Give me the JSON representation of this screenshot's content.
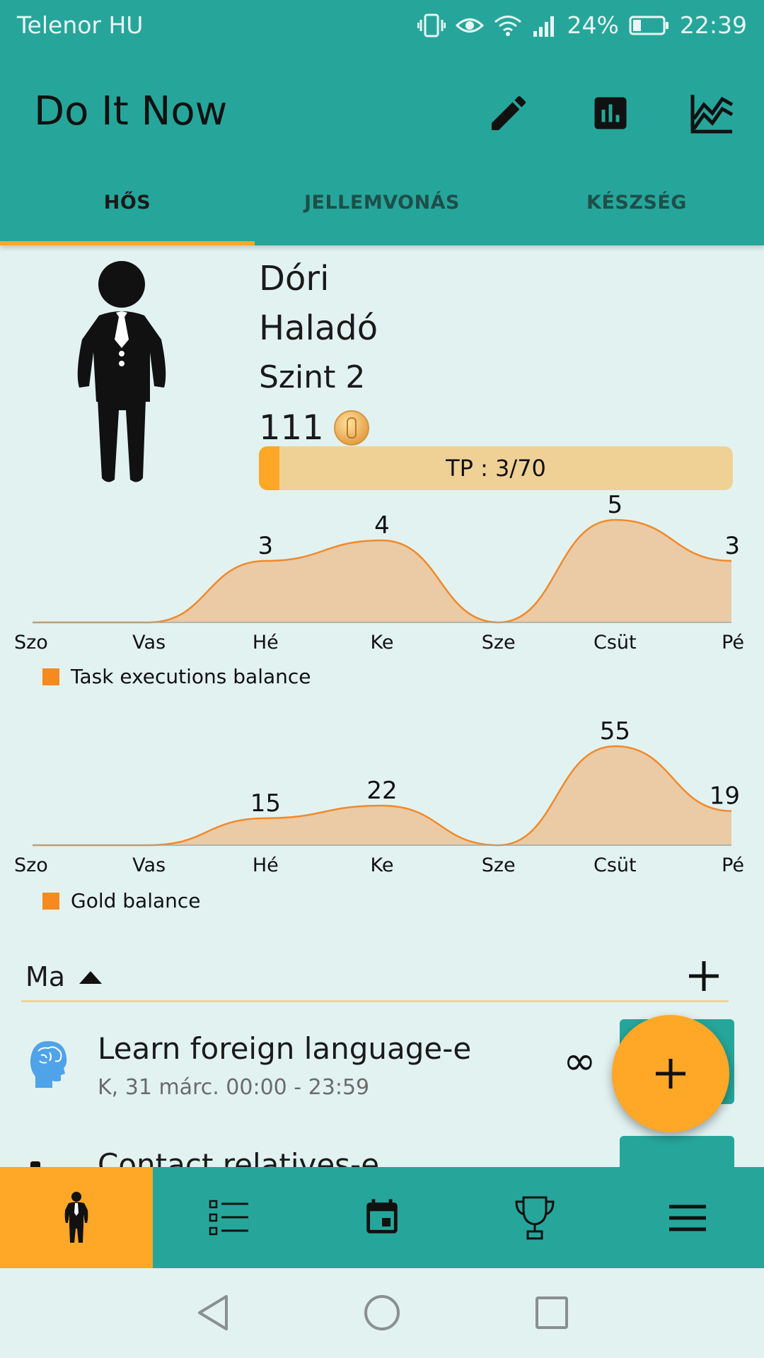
{
  "status_bar": {
    "carrier": "Telenor HU",
    "battery": "24%",
    "time": "22:39"
  },
  "app_bar": {
    "title": "Do It Now",
    "actions": [
      {
        "name": "edit",
        "icon": "pencil-icon"
      },
      {
        "name": "statistics",
        "icon": "bar-chart-icon"
      },
      {
        "name": "progress",
        "icon": "line-chart-icon"
      }
    ]
  },
  "tabs": [
    {
      "label": "HŐS",
      "active": true
    },
    {
      "label": "JELLEMVONÁS",
      "active": false
    },
    {
      "label": "KÉSZSÉG",
      "active": false
    }
  ],
  "hero": {
    "name": "Dóri",
    "rank": "Haladó",
    "level": "Szint 2",
    "gold": "111",
    "gold_icon": "coin-icon",
    "xp_label": "TP : 3/70",
    "xp_fraction": 0.043
  },
  "chart_data": [
    {
      "type": "area",
      "categories": [
        "Szo",
        "Vas",
        "Hé",
        "Ke",
        "Sze",
        "Csüt",
        "Pé"
      ],
      "series": [
        {
          "name": "Task executions balance",
          "values": [
            0,
            0,
            3,
            4,
            0,
            5,
            3
          ]
        }
      ],
      "data_labels": [
        "",
        "",
        "3",
        "4",
        "",
        "5",
        "3"
      ],
      "ylim": [
        0,
        5
      ],
      "color": "#f08a2a",
      "fill": "#ebcaa6",
      "grid": false,
      "legend_position": "bottom-left"
    },
    {
      "type": "area",
      "categories": [
        "Szo",
        "Vas",
        "Hé",
        "Ke",
        "Sze",
        "Csüt",
        "Pé"
      ],
      "series": [
        {
          "name": "Gold balance",
          "values": [
            0,
            0,
            15,
            22,
            0,
            55,
            19
          ]
        }
      ],
      "data_labels": [
        "",
        "",
        "15",
        "22",
        "",
        "55",
        "19"
      ],
      "ylim": [
        0,
        55
      ],
      "color": "#f08a2a",
      "fill": "#ebcaa6",
      "grid": false,
      "legend_position": "bottom-left"
    }
  ],
  "today": {
    "label": "Ma",
    "add_icon": "plus-icon"
  },
  "tasks": [
    {
      "title": "Learn foreign language-e",
      "subtitle": "K, 31 márc. 00:00 - 23:59",
      "icon": "brain-head-icon",
      "repeat": "∞"
    },
    {
      "title": "Contact relatives-e",
      "icon": "person-icon"
    }
  ],
  "fab": {
    "icon": "plus-icon"
  },
  "bottom_nav": [
    {
      "name": "hero",
      "icon": "person-icon",
      "active": true
    },
    {
      "name": "tasks",
      "icon": "checklist-icon",
      "active": false
    },
    {
      "name": "calendar",
      "icon": "calendar-icon",
      "active": false
    },
    {
      "name": "rewards",
      "icon": "trophy-icon",
      "active": false
    },
    {
      "name": "menu",
      "icon": "hamburger-icon",
      "active": false
    }
  ],
  "colors": {
    "primary": "#26a69a",
    "accent": "#ffa726",
    "background": "#e2f2f1"
  }
}
